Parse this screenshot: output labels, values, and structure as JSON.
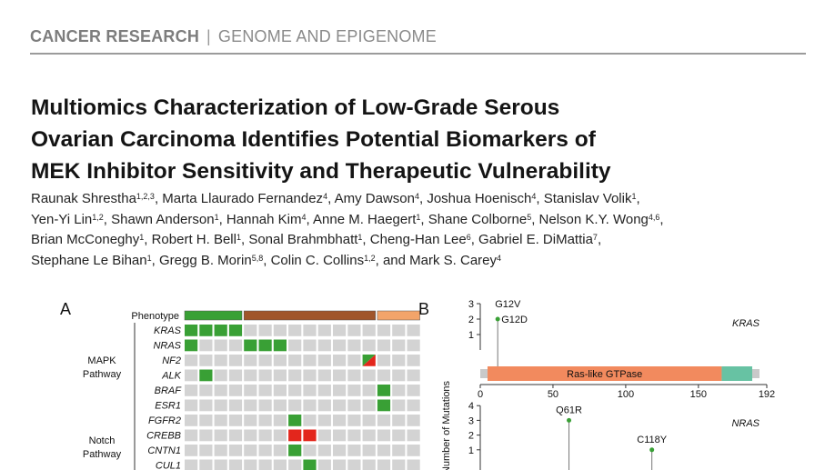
{
  "header": {
    "journal": "CANCER RESEARCH",
    "separator": "|",
    "section": "GENOME AND EPIGENOME"
  },
  "title_lines": [
    "Multiomics Characterization of Low-Grade Serous",
    "Ovarian Carcinoma Identifies Potential Biomarkers of",
    "MEK Inhibitor Sensitivity and Therapeutic Vulnerability"
  ],
  "author_lines": [
    [
      {
        "name": "Raunak Shrestha",
        "sup": "1,2,3",
        "sep": ", "
      },
      {
        "name": "Marta Llaurado Fernandez",
        "sup": "4",
        "sep": ", "
      },
      {
        "name": "Amy Dawson",
        "sup": "4",
        "sep": ", "
      },
      {
        "name": "Joshua Hoenisch",
        "sup": "4",
        "sep": ", "
      },
      {
        "name": "Stanislav Volik",
        "sup": "1",
        "sep": ","
      }
    ],
    [
      {
        "name": "Yen-Yi Lin",
        "sup": "1,2",
        "sep": ", "
      },
      {
        "name": "Shawn Anderson",
        "sup": "1",
        "sep": ", "
      },
      {
        "name": "Hannah Kim",
        "sup": "4",
        "sep": ", "
      },
      {
        "name": "Anne M. Haegert",
        "sup": "1",
        "sep": ", "
      },
      {
        "name": "Shane Colborne",
        "sup": "5",
        "sep": ", "
      },
      {
        "name": "Nelson K.Y. Wong",
        "sup": "4,6",
        "sep": ","
      }
    ],
    [
      {
        "name": "Brian McConeghy",
        "sup": "1",
        "sep": ", "
      },
      {
        "name": "Robert H. Bell",
        "sup": "1",
        "sep": ", "
      },
      {
        "name": "Sonal Brahmbhatt",
        "sup": "1",
        "sep": ", "
      },
      {
        "name": "Cheng-Han Lee",
        "sup": "6",
        "sep": ", "
      },
      {
        "name": "Gabriel E. DiMattia",
        "sup": "7",
        "sep": ","
      }
    ],
    [
      {
        "name": "Stephane Le Bihan",
        "sup": "1",
        "sep": ", "
      },
      {
        "name": "Gregg B. Morin",
        "sup": "5,8",
        "sep": ", "
      },
      {
        "name": "Colin C. Collins",
        "sup": "1,2",
        "sep": ", and "
      },
      {
        "name": "Mark S. Carey",
        "sup": "4",
        "sep": ""
      }
    ]
  ],
  "figure": {
    "panel_a": {
      "label": "A",
      "phenotype_label": "Phenotype",
      "columns": 16,
      "phenotype_groups": [
        {
          "start": 0,
          "count": 4,
          "color": "#39a035"
        },
        {
          "start": 4,
          "count": 9,
          "color": "#a0552a"
        },
        {
          "start": 13,
          "count": 3,
          "color": "#f2a46a"
        }
      ],
      "pathways": [
        {
          "name_lines": [
            "MAPK",
            "Pathway"
          ],
          "first_row": 0,
          "last_row": 5
        },
        {
          "name_lines": [
            "Notch",
            "Pathway"
          ],
          "first_row": 6,
          "last_row": 9
        }
      ],
      "colors": {
        "empty": "#d3d3d3",
        "mutation": "#39a035",
        "amplification": "#e3261c"
      },
      "genes": [
        {
          "name": "KRAS",
          "cells": {
            "0": "mut",
            "1": "mut",
            "2": "mut",
            "3": "mut"
          }
        },
        {
          "name": "NRAS",
          "cells": {
            "0": "mut",
            "4": "mut",
            "5": "mut",
            "6": "mut"
          }
        },
        {
          "name": "NF2",
          "cells": {
            "12": "split"
          }
        },
        {
          "name": "ALK",
          "cells": {
            "1": "mut"
          }
        },
        {
          "name": "BRAF",
          "cells": {
            "13": "mut"
          }
        },
        {
          "name": "ESR1",
          "cells": {
            "13": "mut"
          }
        },
        {
          "name": "FGFR2",
          "cells": {
            "7": "mut"
          }
        },
        {
          "name": "CREBB",
          "cells": {
            "7": "amp",
            "8": "amp"
          }
        },
        {
          "name": "CNTN1",
          "cells": {
            "7": "mut"
          }
        },
        {
          "name": "CUL1",
          "cells": {
            "8": "mut"
          }
        }
      ]
    },
    "panel_b": {
      "label": "B",
      "ylabel": "Number of Mutations",
      "kras": {
        "gene": "KRAS",
        "length": 192,
        "domain": {
          "label": "Ras-like GTPase",
          "start": 5,
          "end": 166,
          "color": "#f28a5e"
        },
        "end_region": {
          "start": 166,
          "end": 187,
          "color": "#67c2a3"
        },
        "xticks": [
          0,
          50,
          100,
          150,
          192
        ],
        "ylim": [
          0,
          3
        ],
        "yticks": [
          1,
          2,
          3
        ],
        "mutations": [
          {
            "label": "G12V",
            "position": 12,
            "count": 3
          },
          {
            "label": "G12D",
            "position": 12,
            "count": 2
          }
        ]
      },
      "nras": {
        "gene": "NRAS",
        "ylim": [
          0,
          4
        ],
        "yticks": [
          1,
          2,
          3,
          4
        ],
        "mutations": [
          {
            "label": "Q61R",
            "position": 61,
            "count": 3
          },
          {
            "label": "C118Y",
            "position": 118,
            "count": 1
          }
        ]
      }
    }
  }
}
